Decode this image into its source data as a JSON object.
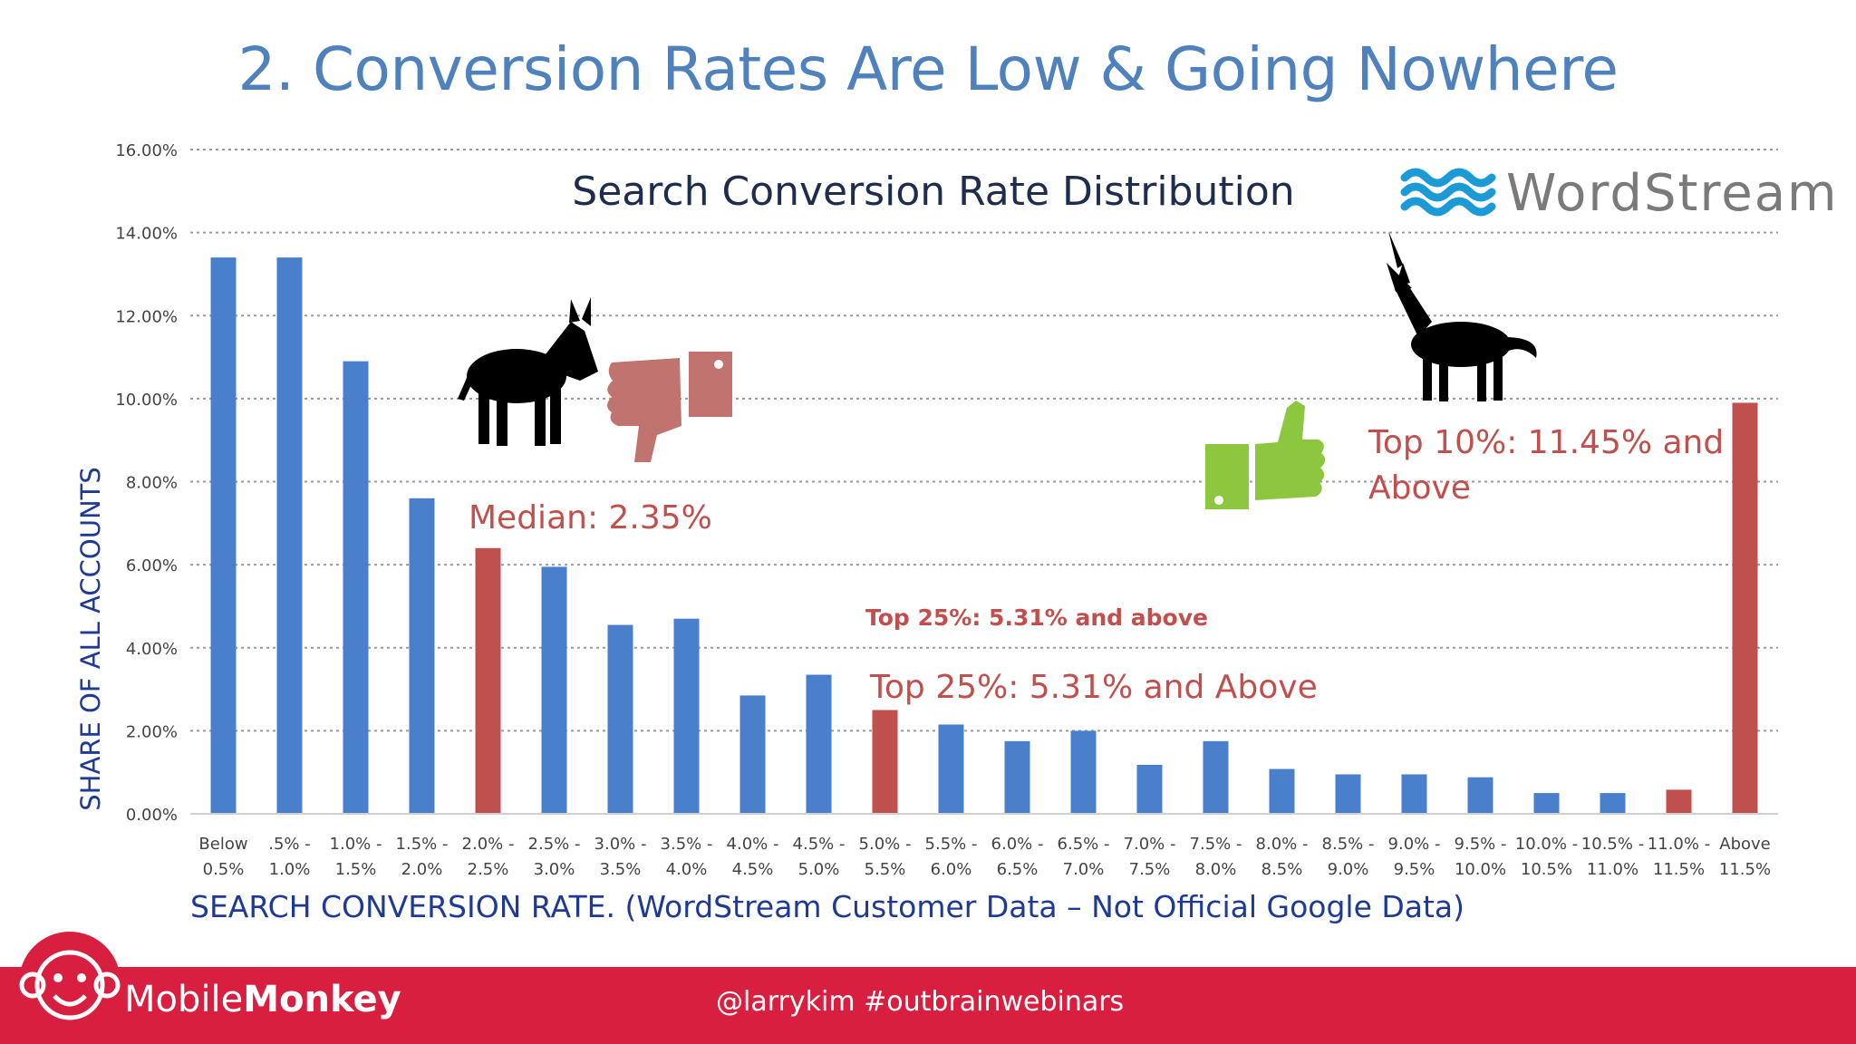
{
  "slide": {
    "title": "2. Conversion Rates Are Low & Going Nowhere",
    "footer_handle": "@larrykim  #outbrainwebinars",
    "brand_light": "Mobile",
    "brand_bold": "Monkey",
    "wordstream_logo": "WordStream"
  },
  "colors": {
    "title": "#4f81bd",
    "bar_blue": "#4a7fcb",
    "bar_red": "#c0504d",
    "annotation_red": "#c0504d",
    "footer_red": "#d91f3f",
    "thumb_down": "#c0736f",
    "thumb_up": "#8dc63f"
  },
  "icons": [
    "donkey-icon",
    "thumbs-down-icon",
    "unicorn-icon",
    "thumbs-up-icon",
    "wave-logo-icon",
    "monkey-logo-icon"
  ],
  "chart_data": {
    "type": "bar",
    "title": "Search Conversion Rate Distribution",
    "xlabel": "SEARCH CONVERSION RATE.  (WordStream Customer Data – Not Official Google Data)",
    "ylabel": "SHARE OF ALL ACCOUNTS",
    "ylim": [
      0,
      16
    ],
    "y_unit": "%",
    "grid": true,
    "categories": [
      [
        "Below",
        "0.5%"
      ],
      [
        ".5% -",
        "1.0%"
      ],
      [
        "1.0% -",
        "1.5%"
      ],
      [
        "1.5% -",
        "2.0%"
      ],
      [
        "2.0% -",
        "2.5%"
      ],
      [
        "2.5% -",
        "3.0%"
      ],
      [
        "3.0% -",
        "3.5%"
      ],
      [
        "3.5% -",
        "4.0%"
      ],
      [
        "4.0% -",
        "4.5%"
      ],
      [
        "4.5% -",
        "5.0%"
      ],
      [
        "5.0% -",
        "5.5%"
      ],
      [
        "5.5% -",
        "6.0%"
      ],
      [
        "6.0% -",
        "6.5%"
      ],
      [
        "6.5% -",
        "7.0%"
      ],
      [
        "7.0% -",
        "7.5%"
      ],
      [
        "7.5% -",
        "8.0%"
      ],
      [
        "8.0% -",
        "8.5%"
      ],
      [
        "8.5% -",
        "9.0%"
      ],
      [
        "9.0% -",
        "9.5%"
      ],
      [
        "9.5% -",
        "10.0%"
      ],
      [
        "10.0% -",
        "10.5%"
      ],
      [
        "10.5% -",
        "11.0%"
      ],
      [
        "11.0% -",
        "11.5%"
      ],
      [
        "Above",
        "11.5%"
      ]
    ],
    "values": [
      13.4,
      13.4,
      10.9,
      7.6,
      6.4,
      5.95,
      4.55,
      4.7,
      2.85,
      3.35,
      2.5,
      2.15,
      1.75,
      2.0,
      1.18,
      1.75,
      1.08,
      0.95,
      0.95,
      0.88,
      0.5,
      0.5,
      0.58,
      9.9
    ],
    "highlighted": [
      4,
      10,
      22,
      23
    ],
    "yticks": [
      "0.00%",
      "2.00%",
      "4.00%",
      "6.00%",
      "8.00%",
      "10.00%",
      "12.00%",
      "14.00%",
      "16.00%"
    ],
    "annotations": {
      "median": "Median: 2.35%",
      "top25_small": "Top 25%: 5.31% and above",
      "top25": "Top 25%: 5.31% and Above",
      "top10_line1": "Top 10%: 11.45% and",
      "top10_line2": "Above"
    }
  }
}
